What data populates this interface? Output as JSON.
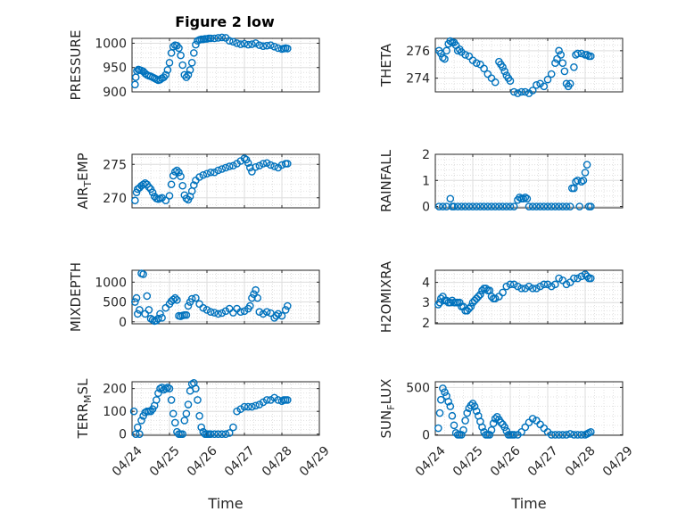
{
  "figure": {
    "title": "Figure 2 low"
  },
  "chart_data": [
    {
      "type": "scatter",
      "title": "Figure 2 low",
      "xlabel": "",
      "ylabel": "PRESSURE",
      "ylabel_main": "PRESSURE",
      "ylabel_sub": "",
      "ylabel_tail": "",
      "xlim": [
        0,
        5
      ],
      "ylim": [
        900,
        1010
      ],
      "yticks": [
        900,
        950,
        1000
      ],
      "xticks": [
        0,
        1,
        2,
        3,
        4,
        5
      ],
      "xticklabels": [],
      "grid": true,
      "x": [
        0.08,
        0.1,
        0.13,
        0.17,
        0.2,
        0.25,
        0.3,
        0.35,
        0.4,
        0.45,
        0.5,
        0.55,
        0.6,
        0.65,
        0.7,
        0.75,
        0.8,
        0.85,
        0.9,
        0.95,
        1.0,
        1.05,
        1.1,
        1.15,
        1.2,
        1.25,
        1.3,
        1.35,
        1.4,
        1.45,
        1.5,
        1.55,
        1.6,
        1.65,
        1.7,
        1.75,
        1.8,
        1.85,
        1.9,
        1.95,
        2.0,
        2.05,
        2.1,
        2.2,
        2.3,
        2.4,
        2.5,
        2.6,
        2.7,
        2.8,
        2.9,
        3.0,
        3.1,
        3.2,
        3.3,
        3.4,
        3.5,
        3.6,
        3.7,
        3.8,
        3.9,
        4.0,
        4.05,
        4.1,
        4.15
      ],
      "y": [
        915,
        930,
        943,
        946,
        945,
        944,
        942,
        938,
        935,
        933,
        932,
        930,
        928,
        926,
        924,
        925,
        928,
        930,
        935,
        945,
        960,
        980,
        993,
        996,
        995,
        990,
        975,
        955,
        935,
        930,
        935,
        945,
        960,
        980,
        997,
        1005,
        1007,
        1008,
        1008,
        1009,
        1009,
        1010,
        1010,
        1010,
        1011,
        1012,
        1011,
        1005,
        1003,
        1000,
        998,
        999,
        997,
        998,
        1000,
        996,
        994,
        995,
        996,
        993,
        990,
        988,
        989,
        990,
        989
      ]
    },
    {
      "type": "scatter",
      "title": "",
      "xlabel": "",
      "ylabel": "THETA",
      "ylabel_main": "THETA",
      "ylabel_sub": "",
      "ylabel_tail": "",
      "xlim": [
        0,
        5
      ],
      "ylim": [
        273,
        276.9
      ],
      "yticks": [
        274,
        276
      ],
      "xticks": [
        0,
        1,
        2,
        3,
        4,
        5
      ],
      "xticklabels": [],
      "grid": true,
      "x": [
        0.1,
        0.15,
        0.2,
        0.25,
        0.3,
        0.35,
        0.4,
        0.45,
        0.5,
        0.55,
        0.6,
        0.65,
        0.7,
        0.8,
        0.9,
        1.0,
        1.1,
        1.2,
        1.3,
        1.4,
        1.5,
        1.6,
        1.7,
        1.75,
        1.8,
        1.85,
        1.9,
        1.95,
        2.0,
        2.1,
        2.2,
        2.3,
        2.4,
        2.5,
        2.6,
        2.7,
        2.8,
        2.9,
        3.0,
        3.1,
        3.2,
        3.25,
        3.3,
        3.35,
        3.4,
        3.45,
        3.5,
        3.55,
        3.6,
        3.7,
        3.75,
        3.8,
        3.9,
        4.0,
        4.05,
        4.1,
        4.15
      ],
      "y": [
        276.0,
        275.8,
        275.5,
        275.4,
        276.0,
        276.5,
        276.7,
        276.6,
        276.6,
        276.4,
        276.0,
        276.1,
        275.9,
        275.7,
        275.6,
        275.3,
        275.1,
        275.0,
        274.7,
        274.3,
        274.0,
        273.7,
        275.2,
        275.0,
        274.8,
        274.5,
        274.2,
        274.0,
        273.8,
        273.0,
        272.9,
        273.0,
        273.0,
        272.9,
        273.1,
        273.5,
        273.6,
        273.4,
        273.9,
        274.3,
        275.1,
        275.4,
        276.0,
        275.7,
        275.1,
        274.5,
        273.6,
        273.4,
        273.6,
        274.8,
        275.7,
        275.8,
        275.8,
        275.7,
        275.7,
        275.6,
        275.6
      ]
    },
    {
      "type": "scatter",
      "title": "",
      "xlabel": "",
      "ylabel": "AIR_TEMP",
      "ylabel_main": "AIR",
      "ylabel_sub": "T",
      "ylabel_tail": "EMP",
      "xlim": [
        0,
        5
      ],
      "ylim": [
        268.5,
        276.5
      ],
      "yticks": [
        270,
        275
      ],
      "xticks": [
        0,
        1,
        2,
        3,
        4,
        5
      ],
      "xticklabels": [],
      "grid": true,
      "x": [
        0.08,
        0.12,
        0.15,
        0.2,
        0.25,
        0.3,
        0.35,
        0.4,
        0.45,
        0.5,
        0.55,
        0.6,
        0.65,
        0.7,
        0.75,
        0.8,
        0.9,
        1.0,
        1.05,
        1.1,
        1.15,
        1.2,
        1.25,
        1.3,
        1.35,
        1.4,
        1.45,
        1.5,
        1.55,
        1.6,
        1.65,
        1.7,
        1.8,
        1.9,
        2.0,
        2.1,
        2.2,
        2.3,
        2.4,
        2.5,
        2.6,
        2.7,
        2.8,
        2.9,
        3.0,
        3.05,
        3.1,
        3.15,
        3.2,
        3.3,
        3.4,
        3.5,
        3.6,
        3.7,
        3.8,
        3.9,
        4.0,
        4.1,
        4.15
      ],
      "y": [
        269.6,
        270.8,
        271.3,
        271.5,
        271.8,
        272.0,
        272.2,
        272.0,
        271.6,
        271.3,
        270.8,
        270.2,
        269.9,
        269.8,
        269.9,
        270.0,
        269.6,
        270.3,
        272.0,
        273.3,
        273.9,
        274.1,
        273.8,
        273.2,
        271.8,
        270.4,
        269.9,
        269.7,
        270.2,
        271.0,
        271.9,
        272.6,
        273.1,
        273.4,
        273.6,
        273.8,
        273.8,
        274.1,
        274.3,
        274.5,
        274.7,
        274.8,
        275.1,
        275.5,
        275.9,
        275.7,
        275.2,
        274.5,
        273.9,
        274.6,
        274.8,
        275.1,
        275.2,
        274.9,
        274.7,
        274.5,
        274.9,
        275.1,
        275.1
      ]
    },
    {
      "type": "scatter",
      "title": "",
      "xlabel": "",
      "ylabel": "RAINFALL",
      "ylabel_main": "RAINFALL",
      "ylabel_sub": "",
      "ylabel_tail": "",
      "xlim": [
        0,
        5
      ],
      "ylim": [
        -0.05,
        2.0
      ],
      "yticks": [
        0,
        1,
        2
      ],
      "xticks": [
        0,
        1,
        2,
        3,
        4,
        5
      ],
      "xticklabels": [],
      "grid": true,
      "x": [
        0.1,
        0.2,
        0.3,
        0.4,
        0.45,
        0.5,
        0.6,
        0.7,
        0.8,
        0.9,
        1.0,
        1.1,
        1.2,
        1.3,
        1.4,
        1.5,
        1.6,
        1.7,
        1.8,
        1.9,
        2.0,
        2.1,
        2.2,
        2.25,
        2.3,
        2.35,
        2.4,
        2.45,
        2.5,
        2.6,
        2.7,
        2.8,
        2.9,
        3.0,
        3.1,
        3.2,
        3.3,
        3.4,
        3.5,
        3.6,
        3.65,
        3.7,
        3.75,
        3.8,
        3.85,
        3.9,
        3.95,
        4.0,
        4.05,
        4.1,
        4.15
      ],
      "y": [
        0,
        0,
        0,
        0.3,
        0,
        0,
        0,
        0,
        0,
        0,
        0,
        0,
        0,
        0,
        0,
        0,
        0,
        0,
        0,
        0,
        0,
        0,
        0.25,
        0.35,
        0.3,
        0.3,
        0.35,
        0.3,
        0,
        0,
        0,
        0,
        0,
        0,
        0,
        0,
        0,
        0,
        0,
        0,
        0.7,
        0.7,
        0.95,
        1.0,
        0,
        0.95,
        1.0,
        1.3,
        1.6,
        0,
        0
      ]
    },
    {
      "type": "scatter",
      "title": "",
      "xlabel": "",
      "ylabel": "MIXDEPTH",
      "ylabel_main": "MIXDEPTH",
      "ylabel_sub": "",
      "ylabel_tail": "",
      "xlim": [
        0,
        5
      ],
      "ylim": [
        -50,
        1300
      ],
      "yticks": [
        0,
        500,
        1000
      ],
      "xticks": [
        0,
        1,
        2,
        3,
        4,
        5
      ],
      "xticklabels": [],
      "grid": true,
      "x": [
        0.08,
        0.12,
        0.15,
        0.2,
        0.25,
        0.3,
        0.35,
        0.4,
        0.45,
        0.5,
        0.55,
        0.6,
        0.65,
        0.7,
        0.75,
        0.8,
        0.9,
        1.0,
        1.05,
        1.1,
        1.15,
        1.2,
        1.25,
        1.3,
        1.35,
        1.4,
        1.45,
        1.5,
        1.55,
        1.6,
        1.7,
        1.8,
        1.9,
        2.0,
        2.1,
        2.2,
        2.3,
        2.4,
        2.5,
        2.6,
        2.7,
        2.8,
        2.9,
        3.0,
        3.1,
        3.15,
        3.2,
        3.25,
        3.3,
        3.35,
        3.4,
        3.5,
        3.6,
        3.7,
        3.8,
        3.85,
        3.9,
        4.0,
        4.1,
        4.15
      ],
      "y": [
        500,
        600,
        200,
        300,
        1220,
        1200,
        200,
        650,
        300,
        80,
        50,
        20,
        30,
        80,
        200,
        100,
        350,
        450,
        520,
        560,
        600,
        550,
        150,
        140,
        160,
        170,
        170,
        400,
        500,
        580,
        600,
        450,
        350,
        300,
        250,
        230,
        200,
        220,
        270,
        330,
        230,
        330,
        250,
        270,
        330,
        400,
        600,
        700,
        800,
        600,
        250,
        200,
        250,
        220,
        100,
        150,
        200,
        150,
        300,
        400
      ]
    },
    {
      "type": "scatter",
      "title": "",
      "xlabel": "",
      "ylabel": "H2OMIXRA",
      "ylabel_main": "H2OMIXRA",
      "ylabel_sub": "",
      "ylabel_tail": "",
      "xlim": [
        0,
        5
      ],
      "ylim": [
        1.95,
        4.6
      ],
      "yticks": [
        2,
        3,
        4
      ],
      "xticks": [
        0,
        1,
        2,
        3,
        4,
        5
      ],
      "xticklabels": [],
      "grid": true,
      "x": [
        0.08,
        0.12,
        0.15,
        0.2,
        0.25,
        0.3,
        0.35,
        0.4,
        0.45,
        0.5,
        0.55,
        0.6,
        0.65,
        0.7,
        0.75,
        0.8,
        0.85,
        0.9,
        0.95,
        1.0,
        1.05,
        1.1,
        1.15,
        1.2,
        1.25,
        1.3,
        1.35,
        1.4,
        1.45,
        1.5,
        1.55,
        1.6,
        1.7,
        1.8,
        1.9,
        2.0,
        2.1,
        2.2,
        2.3,
        2.4,
        2.5,
        2.6,
        2.7,
        2.8,
        2.9,
        3.0,
        3.1,
        3.2,
        3.3,
        3.4,
        3.5,
        3.6,
        3.7,
        3.8,
        3.9,
        4.0,
        4.05,
        4.1,
        4.15
      ],
      "y": [
        2.9,
        3.0,
        3.2,
        3.3,
        3.1,
        3.1,
        3.0,
        3.0,
        3.1,
        3.0,
        3.0,
        3.0,
        3.0,
        2.8,
        2.8,
        2.6,
        2.6,
        2.7,
        2.8,
        3.0,
        3.1,
        3.2,
        3.3,
        3.4,
        3.6,
        3.7,
        3.7,
        3.6,
        3.6,
        3.3,
        3.2,
        3.2,
        3.3,
        3.5,
        3.8,
        3.9,
        3.9,
        3.8,
        3.7,
        3.7,
        3.8,
        3.7,
        3.7,
        3.8,
        3.9,
        3.9,
        3.8,
        3.9,
        4.2,
        4.1,
        3.9,
        4.0,
        4.2,
        4.2,
        4.3,
        4.4,
        4.3,
        4.2,
        4.2
      ]
    },
    {
      "type": "scatter",
      "title": "",
      "xlabel": "Time",
      "ylabel": "TERR_MSL",
      "ylabel_main": "TERR",
      "ylabel_sub": "M",
      "ylabel_tail": "SL",
      "xlim": [
        0,
        5
      ],
      "ylim": [
        -5,
        230
      ],
      "yticks": [
        0,
        100,
        200
      ],
      "xticks": [
        0,
        1,
        2,
        3,
        4,
        5
      ],
      "xticklabels": [
        "04/24",
        "04/25",
        "04/26",
        "04/27",
        "04/28",
        "04/29"
      ],
      "grid": true,
      "x": [
        0.05,
        0.1,
        0.15,
        0.2,
        0.25,
        0.3,
        0.35,
        0.4,
        0.45,
        0.5,
        0.55,
        0.6,
        0.65,
        0.7,
        0.75,
        0.8,
        0.85,
        0.9,
        0.95,
        1.0,
        1.05,
        1.1,
        1.15,
        1.2,
        1.25,
        1.3,
        1.35,
        1.4,
        1.45,
        1.5,
        1.55,
        1.6,
        1.65,
        1.7,
        1.75,
        1.8,
        1.85,
        1.9,
        1.95,
        2.0,
        2.05,
        2.1,
        2.2,
        2.3,
        2.4,
        2.5,
        2.6,
        2.7,
        2.8,
        2.9,
        3.0,
        3.1,
        3.2,
        3.3,
        3.4,
        3.5,
        3.6,
        3.7,
        3.8,
        3.9,
        4.0,
        4.05,
        4.1,
        4.15
      ],
      "y": [
        100,
        0,
        30,
        0,
        60,
        80,
        95,
        100,
        100,
        100,
        110,
        125,
        150,
        180,
        200,
        205,
        195,
        200,
        205,
        200,
        150,
        90,
        50,
        10,
        0,
        0,
        0,
        60,
        90,
        130,
        190,
        220,
        225,
        200,
        150,
        80,
        30,
        10,
        0,
        0,
        0,
        0,
        0,
        0,
        0,
        0,
        5,
        30,
        100,
        110,
        120,
        120,
        120,
        125,
        130,
        140,
        150,
        150,
        160,
        150,
        145,
        150,
        150,
        150
      ]
    },
    {
      "type": "scatter",
      "title": "",
      "xlabel": "Time",
      "ylabel": "SUN_FLUX",
      "ylabel_main": "SUN",
      "ylabel_sub": "F",
      "ylabel_tail": "LUX",
      "xlim": [
        0,
        5
      ],
      "ylim": [
        -5,
        560
      ],
      "yticks": [
        0,
        500
      ],
      "xticks": [
        0,
        1,
        2,
        3,
        4,
        5
      ],
      "xticklabels": [
        "04/24",
        "04/25",
        "04/26",
        "04/27",
        "04/28",
        "04/29"
      ],
      "grid": true,
      "x": [
        0.08,
        0.12,
        0.15,
        0.2,
        0.25,
        0.3,
        0.35,
        0.4,
        0.45,
        0.5,
        0.55,
        0.6,
        0.65,
        0.7,
        0.75,
        0.8,
        0.85,
        0.9,
        0.95,
        1.0,
        1.05,
        1.1,
        1.15,
        1.2,
        1.25,
        1.3,
        1.35,
        1.4,
        1.45,
        1.5,
        1.55,
        1.6,
        1.65,
        1.7,
        1.75,
        1.8,
        1.85,
        1.9,
        1.95,
        2.0,
        2.05,
        2.1,
        2.2,
        2.3,
        2.4,
        2.5,
        2.6,
        2.7,
        2.8,
        2.9,
        3.0,
        3.1,
        3.2,
        3.3,
        3.4,
        3.5,
        3.6,
        3.7,
        3.8,
        3.9,
        4.0,
        4.05,
        4.1,
        4.15
      ],
      "y": [
        70,
        230,
        370,
        490,
        450,
        410,
        350,
        300,
        200,
        100,
        20,
        0,
        0,
        0,
        50,
        150,
        230,
        280,
        310,
        330,
        300,
        250,
        200,
        140,
        80,
        30,
        0,
        0,
        0,
        50,
        120,
        170,
        190,
        160,
        130,
        110,
        80,
        40,
        0,
        0,
        0,
        0,
        0,
        30,
        80,
        130,
        170,
        150,
        110,
        70,
        30,
        0,
        0,
        0,
        0,
        0,
        10,
        0,
        0,
        0,
        0,
        10,
        20,
        30
      ]
    }
  ]
}
